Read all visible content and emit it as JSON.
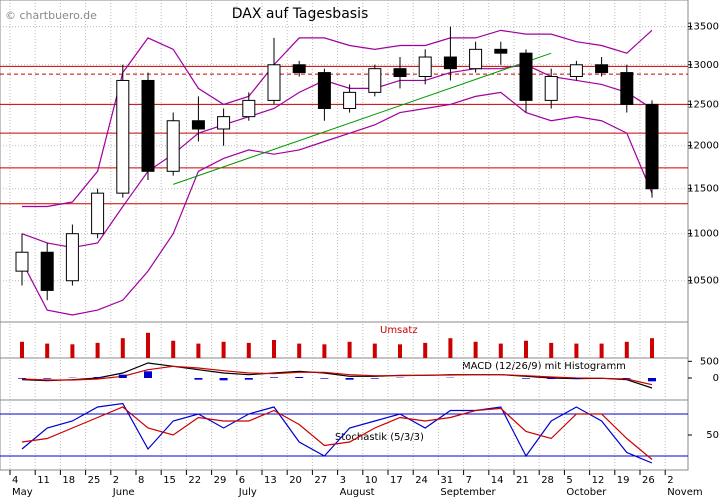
{
  "chart_data": [
    {
      "type": "candlestick",
      "title": "DAX auf Tagesbasis",
      "watermark": "© chartbuero.de",
      "categories": [
        "4",
        "11",
        "18",
        "25",
        "2",
        "8",
        "15",
        "22",
        "29",
        "6",
        "13",
        "20",
        "27",
        "3",
        "10",
        "17",
        "24",
        "31",
        "7",
        "14",
        "21",
        "28",
        "5",
        "12",
        "19",
        "26",
        "2"
      ],
      "month_labels": [
        "May",
        null,
        null,
        null,
        "June",
        null,
        null,
        null,
        null,
        "July",
        null,
        null,
        null,
        "August",
        null,
        null,
        null,
        "September",
        null,
        null,
        null,
        null,
        "October",
        null,
        null,
        null,
        "Novem"
      ],
      "open": [
        10600,
        10800,
        10500,
        11000,
        11450,
        12800,
        11700,
        12300,
        12200,
        12350,
        12550,
        13000,
        12900,
        12450,
        12650,
        12950,
        12850,
        13100,
        12950,
        13200,
        13150,
        12550,
        12850,
        13000,
        12900,
        12500,
        null
      ],
      "high": [
        11000,
        10900,
        11100,
        11500,
        13000,
        12900,
        12400,
        12600,
        12450,
        12650,
        13350,
        13050,
        12950,
        12750,
        13000,
        13100,
        13200,
        13500,
        13300,
        13300,
        13200,
        12950,
        13050,
        13100,
        13000,
        12550,
        null
      ],
      "low": [
        10450,
        10300,
        10450,
        10950,
        11400,
        11600,
        11650,
        12050,
        12000,
        12300,
        12500,
        12850,
        12300,
        12400,
        12600,
        12700,
        12750,
        12800,
        12900,
        13000,
        12400,
        12450,
        12800,
        12850,
        12400,
        11400,
        null
      ],
      "close": [
        10800,
        10400,
        11000,
        11450,
        12800,
        11700,
        12300,
        12200,
        12350,
        12550,
        13000,
        12900,
        12450,
        12650,
        12950,
        12850,
        13100,
        12950,
        13200,
        13150,
        12550,
        12850,
        13000,
        12900,
        12500,
        11500,
        null
      ],
      "up_color": "#ffffff",
      "down_color": "#000000",
      "series": [
        {
          "name": "upper",
          "color": "#a000a0",
          "values": [
            11300,
            11300,
            11350,
            11700,
            12900,
            13350,
            13200,
            12700,
            12500,
            12600,
            13000,
            13350,
            13350,
            13250,
            13200,
            13250,
            13250,
            13350,
            13350,
            13450,
            13400,
            13400,
            13300,
            13250,
            13150,
            13450,
            null
          ]
        },
        {
          "name": "middle",
          "color": "#a000a0",
          "values": [
            11000,
            10900,
            10850,
            10900,
            11300,
            11700,
            11900,
            12150,
            12250,
            12350,
            12450,
            12650,
            12800,
            12700,
            12700,
            12800,
            12800,
            12900,
            12950,
            12950,
            13000,
            12850,
            12800,
            12750,
            12650,
            12450,
            null
          ]
        },
        {
          "name": "lower",
          "color": "#a000a0",
          "values": [
            10700,
            10200,
            10150,
            10200,
            10300,
            10600,
            11000,
            11700,
            11850,
            11950,
            11900,
            11950,
            12050,
            12150,
            12250,
            12400,
            12450,
            12500,
            12600,
            12650,
            12400,
            12300,
            12350,
            12300,
            12150,
            11450,
            null
          ]
        }
      ],
      "levels": [
        {
          "value": 12980,
          "dashed": false
        },
        {
          "value": 12880,
          "dashed": true
        },
        {
          "value": 12500,
          "dashed": false
        },
        {
          "value": 12150,
          "dashed": false
        },
        {
          "value": 11740,
          "dashed": false
        },
        {
          "value": 11330,
          "dashed": false
        }
      ],
      "level_color": "#cc0000",
      "trendline": {
        "color": "#009900",
        "from_index": 6,
        "from": 11550,
        "to_index": 21,
        "to": 13150
      },
      "ylim": [
        10100,
        13860
      ],
      "yticks": [
        10500,
        11000,
        11500,
        12000,
        12500,
        13000,
        13500
      ],
      "log": true,
      "grid": true
    },
    {
      "type": "bar",
      "label": "Umsatz",
      "color": "#cc0000",
      "values": [
        45,
        40,
        38,
        42,
        55,
        70,
        48,
        40,
        45,
        42,
        50,
        40,
        38,
        45,
        40,
        38,
        42,
        55,
        45,
        40,
        48,
        42,
        40,
        40,
        45,
        55,
        null
      ],
      "ylim": [
        0,
        100
      ]
    },
    {
      "type": "line",
      "label": "MACD (12/26/9) mit Histogramm",
      "ylim": [
        -660,
        600
      ],
      "yticks": [
        500,
        0
      ],
      "series": [
        {
          "name": "MACD",
          "color": "#000000",
          "values": [
            -50,
            -80,
            -50,
            0,
            150,
            450,
            350,
            250,
            150,
            100,
            150,
            200,
            150,
            50,
            50,
            80,
            80,
            100,
            100,
            100,
            50,
            0,
            -20,
            -10,
            -50,
            -300,
            null
          ]
        },
        {
          "name": "Signal",
          "color": "#cc0000",
          "values": [
            -30,
            -60,
            -60,
            -30,
            50,
            250,
            350,
            300,
            220,
            150,
            130,
            170,
            170,
            100,
            70,
            70,
            80,
            90,
            100,
            100,
            70,
            30,
            0,
            -10,
            -30,
            -200,
            null
          ]
        },
        {
          "name": "Histogramm",
          "color": "#0000cc",
          "bars": true,
          "values": [
            -20,
            -20,
            10,
            30,
            100,
            200,
            0,
            -50,
            -70,
            -50,
            20,
            30,
            -20,
            -50,
            -20,
            10,
            0,
            10,
            0,
            0,
            -20,
            -30,
            -20,
            0,
            -20,
            -100,
            null
          ]
        }
      ]
    },
    {
      "type": "line",
      "label": "Stochastik (5/3/3)",
      "ylim": [
        0,
        100
      ],
      "yticks": [
        50
      ],
      "levels": [
        20,
        80
      ],
      "level_color": "#0000cc",
      "series": [
        {
          "name": "K",
          "color": "#0000cc",
          "values": [
            30,
            60,
            70,
            90,
            95,
            30,
            70,
            80,
            60,
            80,
            90,
            40,
            20,
            60,
            70,
            80,
            60,
            85,
            85,
            90,
            20,
            70,
            90,
            70,
            25,
            10,
            null
          ]
        },
        {
          "name": "D",
          "color": "#cc0000",
          "values": [
            40,
            45,
            60,
            75,
            90,
            60,
            50,
            75,
            70,
            70,
            85,
            65,
            35,
            40,
            60,
            75,
            70,
            75,
            85,
            88,
            55,
            45,
            80,
            80,
            45,
            15,
            null
          ]
        }
      ]
    }
  ]
}
